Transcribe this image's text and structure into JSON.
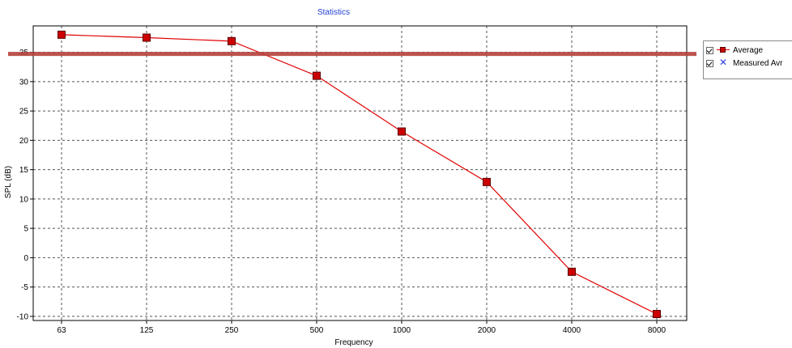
{
  "chart_data": {
    "type": "line",
    "title": "Statistics",
    "xlabel": "Frequency",
    "ylabel": "SPL (dB)",
    "categories": [
      "63",
      "125",
      "250",
      "500",
      "1000",
      "2000",
      "4000",
      "8000"
    ],
    "series": [
      {
        "name": "Average",
        "color": "#e00000",
        "marker": "square",
        "values": [
          38.0,
          37.5,
          36.9,
          31.0,
          21.5,
          12.9,
          -2.4,
          -9.6
        ]
      }
    ],
    "yticks": [
      -10,
      -5,
      0,
      5,
      10,
      15,
      20,
      25,
      30,
      35
    ],
    "ylim": [
      -10.7,
      39.5
    ],
    "grid": true,
    "legend_position": "right",
    "reference_line": {
      "value": 35,
      "color": "#b5403c"
    }
  },
  "legend": {
    "items": [
      {
        "label": "Average",
        "icon": "red-square-line-icon",
        "checked": true
      },
      {
        "label": "Measured Avr",
        "icon": "blue-x-icon",
        "checked": true
      }
    ]
  },
  "colors": {
    "title": "#1f3fd6",
    "series": "#e00000",
    "marker_fill": "#cc0000",
    "grid": "#555555",
    "reference_line": "#b5403c"
  }
}
